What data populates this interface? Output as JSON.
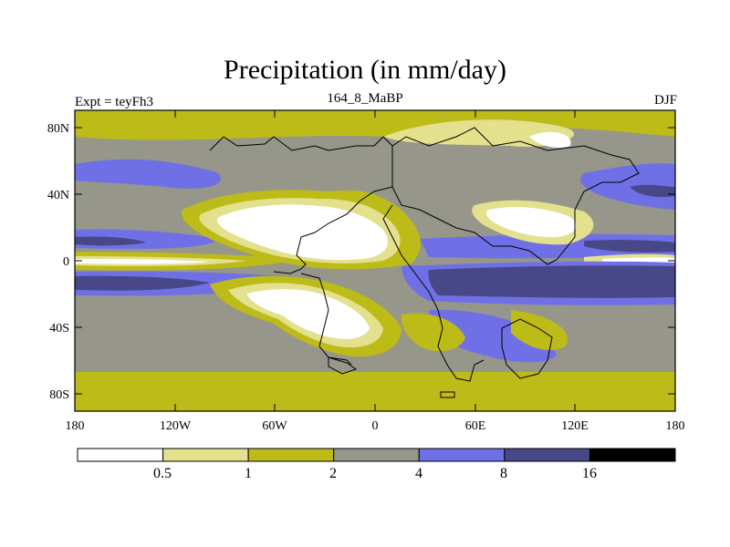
{
  "title": "Precipitation (in mm/day)",
  "left_label": "Expt = teyFh3",
  "center_label": "164_8_MaBP",
  "right_label": "DJF",
  "lat_ticks": [
    "80N",
    "40N",
    "0",
    "40S",
    "80S"
  ],
  "lon_ticks": [
    "180",
    "120W",
    "60W",
    "0",
    "60E",
    "120E",
    "180"
  ],
  "colorbar": {
    "levels": [
      "0.5",
      "1",
      "2",
      "4",
      "8",
      "16"
    ],
    "colors": [
      "#ffffff",
      "#e3e08e",
      "#bdbb17",
      "#96968a",
      "#7070e6",
      "#484888",
      "#000000"
    ]
  },
  "chart_data": {
    "type": "map",
    "title": "Precipitation (in mm/day)",
    "variable": "Precipitation",
    "units": "mm/day",
    "season": "DJF",
    "experiment": "teyFh3",
    "period": "164_8_MaBP",
    "lon_range": [
      -180,
      180
    ],
    "lat_range": [
      -90,
      90
    ],
    "contour_levels": [
      0.5,
      1,
      2,
      4,
      8,
      16
    ]
  }
}
